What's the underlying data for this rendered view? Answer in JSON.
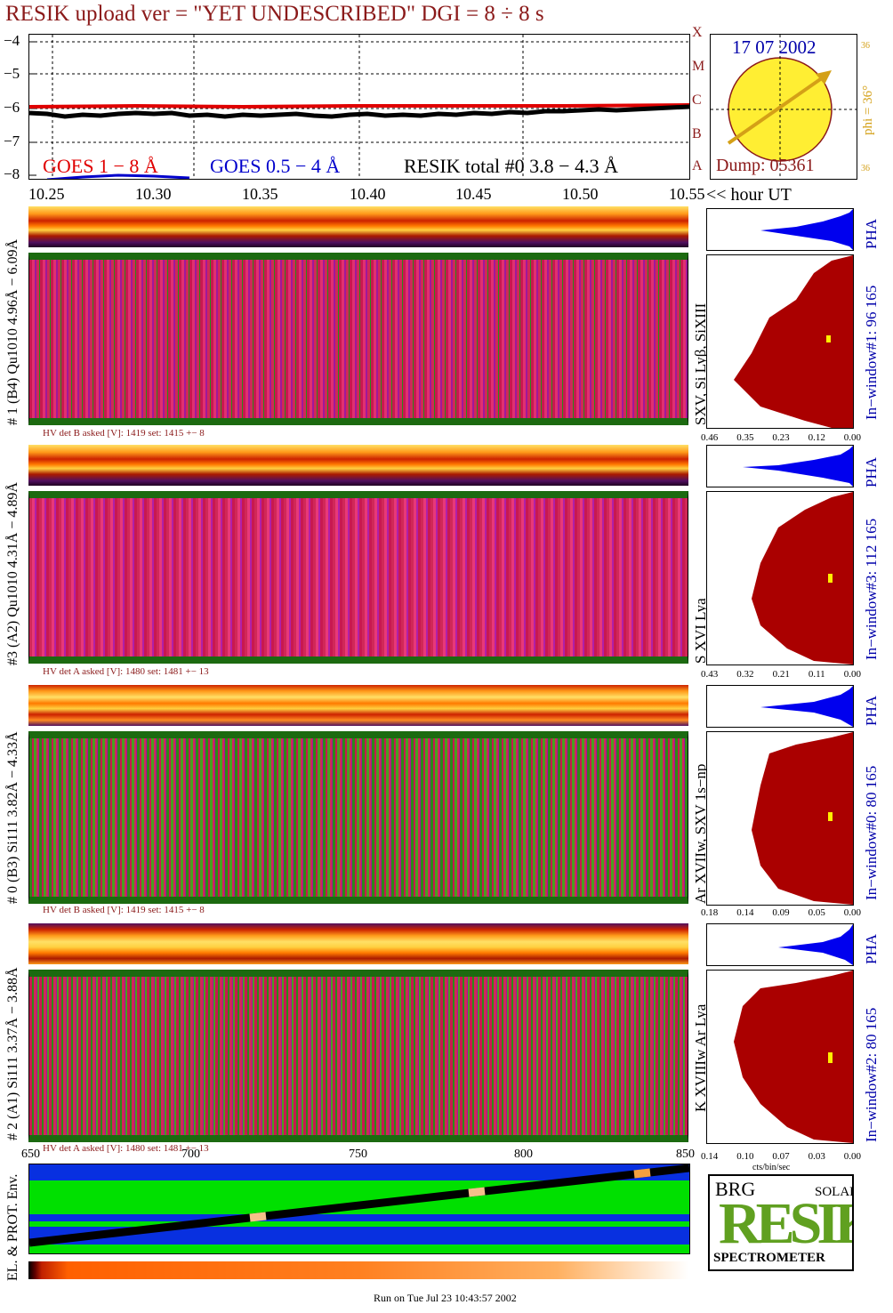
{
  "header": {
    "title": "RESIK upload ver = \"YET UNDESCRIBED\"  DGI =   8 ÷   8 s"
  },
  "goes_panel": {
    "y_ticks": [
      "−4",
      "−5",
      "−6",
      "−7",
      "−8"
    ],
    "legend_goes_long": "GOES 1 − 8 Å",
    "legend_goes_short": "GOES 0.5 − 4 Å",
    "legend_resik": "RESIK total #0  3.8 − 4.3 Å",
    "goes_long_color": "#e00000",
    "goes_short_color": "#0000cc",
    "resik_color": "#000000",
    "class_letters": [
      "X",
      "M",
      "C",
      "B",
      "A"
    ]
  },
  "time_axis": {
    "ticks": [
      "10.25",
      "10.30",
      "10.35",
      "10.40",
      "10.45",
      "10.50",
      "10.55"
    ],
    "label": "<< hour UT"
  },
  "sun_panel": {
    "date": "17 07 2002",
    "phi_label": "phi = 36°",
    "phi_value": "36",
    "dump": "Dump: 05361",
    "sun_color": "#ffee33",
    "arrow_color": "#d4a017"
  },
  "channels": [
    {
      "left_label": "# 1 (B4) Qu1010 4.96Å − 6.09Å",
      "lines_label": "SXV, Si Lyβ, SiXIII",
      "hv_note": "HV det B asked [V]:  1419 set:  1415  +−   8",
      "window_label": "In−window#1:   96 165",
      "pha_label": "PHA",
      "hist_ticks": [
        "0.46",
        "0.35",
        "0.23",
        "0.12",
        "0.00"
      ]
    },
    {
      "left_label": "#3 (A2) Qu1010  4.31Å − 4.89Å",
      "lines_label": "S XVI Lya",
      "hv_note": "HV det A asked [V]:  1480 set:  1481  +−   13",
      "window_label": "In−window#3:   112 165",
      "pha_label": "PHA",
      "hist_ticks": [
        "0.43",
        "0.32",
        "0.21",
        "0.11",
        "0.00"
      ]
    },
    {
      "left_label": "# 0 (B3) Si111  3.82Å − 4.33Å",
      "lines_label": "Ar XVIIw, SXV 1s−np",
      "hv_note": "HV det B asked [V]:  1419 set:  1415  +−   8",
      "window_label": "In−window#0:   80 165",
      "pha_label": "PHA",
      "hist_ticks": [
        "0.18",
        "0.14",
        "0.09",
        "0.05",
        "0.00"
      ]
    },
    {
      "left_label": "# 2 (A1) Si111  3.37Å − 3.88Å",
      "lines_label": "K XVIIIw  Ar Lya",
      "hv_note": "HV det A asked [V]:  1480 set:  1481  +−   13",
      "window_label": "In−window#2:   80 165",
      "pha_label": "PHA",
      "hist_ticks": [
        "0.14",
        "0.10",
        "0.07",
        "0.03",
        "0.00"
      ]
    }
  ],
  "hist_xlabel": "cts/bin/sec",
  "bottom_axis": {
    "ticks": [
      "650",
      "700",
      "750",
      "800",
      "850"
    ]
  },
  "env_panel": {
    "label": "EL. & PROT. Env."
  },
  "logo": {
    "big_text": "RESIK",
    "brg": "BRG",
    "solar": "SOLAR",
    "spectrometer": "SPECTROMETER"
  },
  "footer": {
    "run_text": "Run on Tue Jul 23 10:43:57 2002"
  }
}
